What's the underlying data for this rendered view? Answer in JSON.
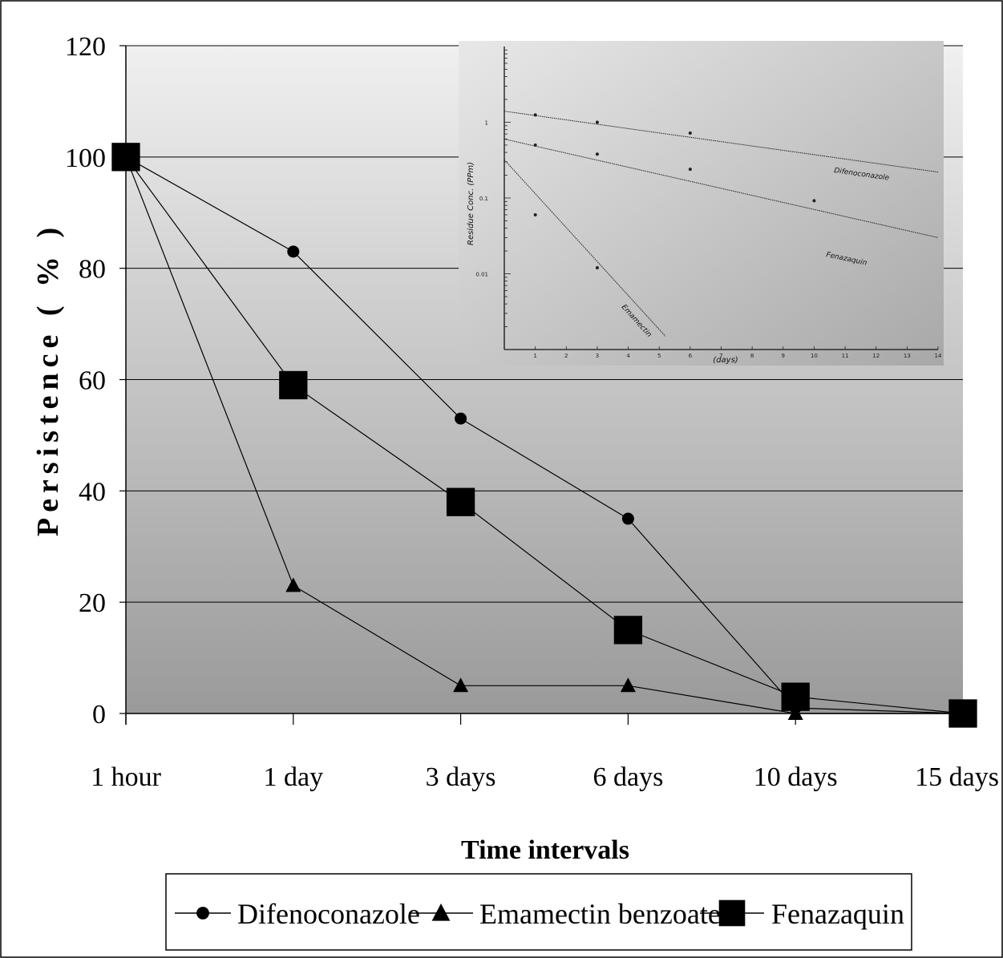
{
  "chart_data": [
    {
      "type": "line",
      "title": "",
      "xlabel": "Time intervals",
      "ylabel": "Persistence ( % )",
      "categories": [
        "1 hour",
        "1 day",
        "3 days",
        "6 days",
        "10 days",
        "15 days"
      ],
      "ylim": [
        0,
        120
      ],
      "yticks": [
        "0",
        "20",
        "40",
        "60",
        "80",
        "100",
        "120"
      ],
      "grid": true,
      "legend": "bottom",
      "series": [
        {
          "name": "Difenoconazole",
          "marker": "circle",
          "values": [
            100,
            83,
            53,
            35,
            1,
            0
          ]
        },
        {
          "name": "Emamectin benzoate",
          "marker": "triangle",
          "values": [
            100,
            23,
            5,
            5,
            0,
            0
          ]
        },
        {
          "name": "Fenazaquin",
          "marker": "square",
          "values": [
            100,
            59,
            38,
            15,
            3,
            0
          ]
        }
      ]
    },
    {
      "type": "line",
      "title": "",
      "xlabel": "(days)",
      "ylabel": "Residue Conc. (PPm)",
      "scale": "log",
      "xticks": [
        "1",
        "2",
        "3",
        "4",
        "5",
        "6",
        "7",
        "8",
        "9",
        "10",
        "11",
        "12",
        "13",
        "14"
      ],
      "yticks": [
        "1",
        "0.1",
        "0.01"
      ],
      "series": [
        {
          "name": "Difenoconazole",
          "points": [
            [
              0,
              1.4
            ],
            [
              1,
              1.25
            ],
            [
              3,
              1.0
            ],
            [
              6,
              0.72
            ],
            [
              14,
              0.22
            ]
          ]
        },
        {
          "name": "Fenazaquin",
          "points": [
            [
              0,
              0.6
            ],
            [
              1,
              0.5
            ],
            [
              3,
              0.38
            ],
            [
              6,
              0.24
            ],
            [
              10,
              0.092
            ],
            [
              14,
              0.03
            ]
          ]
        },
        {
          "name": "Emamectin",
          "points": [
            [
              0,
              0.32
            ],
            [
              1,
              0.06
            ],
            [
              3,
              0.012
            ],
            [
              5.2,
              0.0015
            ]
          ]
        }
      ]
    }
  ],
  "colors": {
    "line": "#000000",
    "plot_top": "#f0f0f0",
    "plot_bottom": "#9a9a9a",
    "inset_top": "#e8e8e8",
    "inset_bottom": "#a8a8a8"
  }
}
